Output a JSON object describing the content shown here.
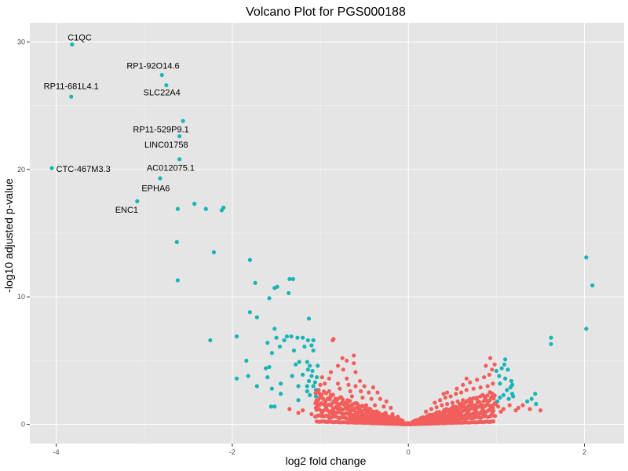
{
  "chart_data": {
    "type": "scatter",
    "title": "Volcano Plot for PGS000188",
    "xlabel": "log2 fold change",
    "ylabel": "-log10 adjusted p-value",
    "xlim": [
      -4.3,
      2.45
    ],
    "ylim": [
      -1.5,
      31.5
    ],
    "x_ticks": [
      -4,
      -2,
      0,
      2
    ],
    "y_ticks": [
      0,
      10,
      20,
      30
    ],
    "x_tick_labels": [
      "-4",
      "-2",
      "0",
      "2"
    ],
    "y_tick_labels": [
      "0",
      "10",
      "20",
      "30"
    ],
    "grid": true,
    "legend": "none",
    "colors": {
      "panel": "#e5e5e5",
      "grid_major": "#ffffff",
      "significant": "#17b4b8",
      "not_significant": "#f15e5b"
    },
    "series": [
      {
        "color_key": "significant",
        "points": [
          [
            -3.82,
            29.8
          ],
          [
            -2.8,
            27.4
          ],
          [
            -2.75,
            26.6
          ],
          [
            -3.83,
            25.7
          ],
          [
            -2.56,
            23.8
          ],
          [
            -2.6,
            22.6
          ],
          [
            -2.6,
            20.8
          ],
          [
            -4.05,
            20.1
          ],
          [
            -2.82,
            19.3
          ],
          [
            -3.08,
            17.5
          ],
          [
            -2.43,
            17.3
          ],
          [
            -2.62,
            16.9
          ],
          [
            -2.3,
            16.9
          ],
          [
            -2.12,
            16.8
          ],
          [
            -2.1,
            17.0
          ],
          [
            -2.63,
            14.3
          ],
          [
            -2.21,
            13.5
          ],
          [
            -1.8,
            12.9
          ],
          [
            -2.62,
            11.3
          ],
          [
            -1.74,
            11.1
          ],
          [
            -1.52,
            10.7
          ],
          [
            -1.49,
            10.8
          ],
          [
            -1.36,
            10.3
          ],
          [
            -1.35,
            11.4
          ],
          [
            -1.31,
            11.4
          ],
          [
            -1.58,
            9.9
          ],
          [
            -1.8,
            8.8
          ],
          [
            -1.72,
            8.4
          ],
          [
            -1.13,
            8.3
          ],
          [
            -1.52,
            7.5
          ],
          [
            -1.95,
            6.9
          ],
          [
            -2.25,
            6.6
          ],
          [
            -1.5,
            6.8
          ],
          [
            -1.41,
            6.6
          ],
          [
            -1.38,
            6.9
          ],
          [
            -1.33,
            6.9
          ],
          [
            -1.26,
            6.8
          ],
          [
            -1.2,
            6.8
          ],
          [
            -1.14,
            6.6
          ],
          [
            -1.08,
            6.6
          ],
          [
            -1.6,
            6.4
          ],
          [
            -1.46,
            6.1
          ],
          [
            -1.18,
            6.1
          ],
          [
            -1.1,
            6.2
          ],
          [
            -1.08,
            5.8
          ],
          [
            -1.3,
            5.8
          ],
          [
            -1.55,
            5.6
          ],
          [
            -1.84,
            5.0
          ],
          [
            -1.24,
            4.9
          ],
          [
            -1.15,
            4.9
          ],
          [
            -1.62,
            4.4
          ],
          [
            -1.58,
            4.5
          ],
          [
            -1.28,
            4.7
          ],
          [
            -1.12,
            4.6
          ],
          [
            -1.03,
            4.6
          ],
          [
            -1.14,
            4.3
          ],
          [
            -1.09,
            4.2
          ],
          [
            -1.82,
            3.8
          ],
          [
            -1.95,
            3.6
          ],
          [
            -1.6,
            3.7
          ],
          [
            -1.32,
            3.8
          ],
          [
            -1.2,
            3.9
          ],
          [
            -1.1,
            3.8
          ],
          [
            -1.04,
            3.7
          ],
          [
            -1.13,
            3.4
          ],
          [
            -1.06,
            3.3
          ],
          [
            -1.45,
            3.2
          ],
          [
            -1.72,
            3.0
          ],
          [
            -1.25,
            3.0
          ],
          [
            -1.15,
            3.0
          ],
          [
            -1.08,
            3.0
          ],
          [
            -1.15,
            2.6
          ],
          [
            -1.05,
            2.7
          ],
          [
            -1.55,
            2.8
          ],
          [
            -1.45,
            2.4
          ],
          [
            -1.12,
            2.3
          ],
          [
            -1.05,
            2.2
          ],
          [
            -1.56,
            1.4
          ],
          [
            -1.52,
            1.4
          ],
          [
            -1.25,
            1.9
          ],
          [
            1.1,
            5.1
          ],
          [
            1.09,
            4.7
          ],
          [
            1.06,
            4.4
          ],
          [
            1.0,
            4.2
          ],
          [
            1.13,
            4.3
          ],
          [
            1.03,
            3.8
          ],
          [
            1.1,
            3.6
          ],
          [
            1.17,
            3.4
          ],
          [
            1.18,
            3.1
          ],
          [
            1.04,
            3.2
          ],
          [
            1.16,
            2.9
          ],
          [
            1.12,
            2.7
          ],
          [
            1.18,
            2.4
          ],
          [
            1.19,
            2.2
          ],
          [
            1.08,
            2.3
          ],
          [
            1.04,
            2.1
          ],
          [
            1.14,
            2.0
          ],
          [
            1.44,
            2.4
          ],
          [
            1.4,
            2.0
          ],
          [
            1.35,
            1.8
          ],
          [
            1.45,
            1.6
          ],
          [
            1.01,
            1.8
          ],
          [
            1.62,
            6.8
          ],
          [
            1.62,
            6.3
          ],
          [
            2.02,
            13.1
          ],
          [
            2.09,
            10.9
          ],
          [
            2.02,
            7.5
          ]
        ]
      },
      {
        "color_key": "not_significant",
        "points": [
          [
            -0.85,
            6.7
          ],
          [
            -0.86,
            6.6
          ],
          [
            -0.75,
            5.2
          ],
          [
            -0.62,
            5.4
          ],
          [
            -0.7,
            5.0
          ],
          [
            -0.8,
            4.6
          ],
          [
            -0.62,
            4.8
          ],
          [
            -0.88,
            4.1
          ],
          [
            -0.74,
            4.3
          ],
          [
            -0.6,
            4.1
          ],
          [
            -0.98,
            3.7
          ],
          [
            -0.9,
            3.6
          ],
          [
            -0.7,
            3.6
          ],
          [
            -0.55,
            3.4
          ],
          [
            -1.0,
            3.1
          ],
          [
            -0.95,
            3.2
          ],
          [
            -0.8,
            3.2
          ],
          [
            -0.68,
            3.1
          ],
          [
            -0.6,
            3.0
          ],
          [
            -0.5,
            3.0
          ],
          [
            -0.4,
            2.9
          ],
          [
            -1.02,
            2.7
          ],
          [
            -0.9,
            2.6
          ],
          [
            -0.78,
            2.8
          ],
          [
            -0.66,
            2.6
          ],
          [
            -0.54,
            2.6
          ],
          [
            -0.45,
            2.5
          ],
          [
            -0.35,
            2.5
          ],
          [
            -1.0,
            2.2
          ],
          [
            -0.88,
            2.2
          ],
          [
            -0.76,
            2.1
          ],
          [
            -0.64,
            2.2
          ],
          [
            -0.52,
            2.1
          ],
          [
            -0.42,
            2.0
          ],
          [
            -0.32,
            2.0
          ],
          [
            -0.25,
            1.8
          ],
          [
            -1.03,
            1.8
          ],
          [
            -0.95,
            1.6
          ],
          [
            -0.82,
            1.7
          ],
          [
            -0.7,
            1.7
          ],
          [
            -0.58,
            1.6
          ],
          [
            -0.48,
            1.5
          ],
          [
            -0.38,
            1.5
          ],
          [
            -0.28,
            1.4
          ],
          [
            -0.2,
            1.3
          ],
          [
            -1.35,
            1.2
          ],
          [
            -1.2,
            1.1
          ],
          [
            -1.05,
            1.3
          ],
          [
            -0.93,
            1.2
          ],
          [
            -0.8,
            1.2
          ],
          [
            -0.68,
            1.2
          ],
          [
            -0.56,
            1.1
          ],
          [
            -0.46,
            1.0
          ],
          [
            -0.36,
            1.0
          ],
          [
            -0.26,
            0.9
          ],
          [
            -0.18,
            0.8
          ],
          [
            -0.12,
            0.6
          ],
          [
            -1.25,
            0.9
          ],
          [
            -1.1,
            0.8
          ],
          [
            -0.98,
            0.9
          ],
          [
            -0.86,
            0.8
          ],
          [
            -0.74,
            0.8
          ],
          [
            -0.62,
            0.7
          ],
          [
            -0.5,
            0.7
          ],
          [
            -0.4,
            0.6
          ],
          [
            -0.3,
            0.6
          ],
          [
            -0.22,
            0.5
          ],
          [
            -0.15,
            0.4
          ],
          [
            -0.1,
            0.3
          ],
          [
            -0.9,
            0.5
          ],
          [
            -0.78,
            0.5
          ],
          [
            -0.66,
            0.4
          ],
          [
            -0.55,
            0.4
          ],
          [
            -0.45,
            0.35
          ],
          [
            -0.35,
            0.3
          ],
          [
            -0.27,
            0.25
          ],
          [
            -0.2,
            0.2
          ],
          [
            -0.14,
            0.15
          ],
          [
            -0.08,
            0.1
          ],
          [
            -0.05,
            0.05
          ],
          [
            -0.6,
            0.15
          ],
          [
            -0.48,
            0.15
          ],
          [
            -0.38,
            0.12
          ],
          [
            -0.3,
            0.1
          ],
          [
            -0.03,
            0.02
          ],
          [
            0.03,
            0.02
          ],
          [
            0.06,
            0.06
          ],
          [
            0.1,
            0.1
          ],
          [
            0.15,
            0.15
          ],
          [
            0.2,
            0.2
          ],
          [
            0.26,
            0.3
          ],
          [
            0.32,
            0.35
          ],
          [
            0.38,
            0.4
          ],
          [
            0.45,
            0.5
          ],
          [
            0.52,
            0.55
          ],
          [
            0.6,
            0.6
          ],
          [
            0.68,
            0.6
          ],
          [
            0.76,
            0.7
          ],
          [
            0.85,
            0.8
          ],
          [
            0.95,
            0.8
          ],
          [
            0.1,
            0.35
          ],
          [
            0.16,
            0.5
          ],
          [
            0.22,
            0.6
          ],
          [
            0.28,
            0.75
          ],
          [
            0.34,
            0.85
          ],
          [
            0.4,
            0.95
          ],
          [
            0.46,
            1.0
          ],
          [
            0.52,
            1.1
          ],
          [
            0.58,
            1.2
          ],
          [
            0.65,
            1.3
          ],
          [
            0.72,
            1.3
          ],
          [
            0.8,
            1.4
          ],
          [
            0.88,
            1.5
          ],
          [
            0.96,
            1.3
          ],
          [
            0.2,
            1.0
          ],
          [
            0.26,
            1.2
          ],
          [
            0.32,
            1.35
          ],
          [
            0.38,
            1.5
          ],
          [
            0.44,
            1.6
          ],
          [
            0.5,
            1.7
          ],
          [
            0.56,
            1.8
          ],
          [
            0.62,
            1.9
          ],
          [
            0.7,
            2.0
          ],
          [
            0.78,
            2.1
          ],
          [
            0.86,
            2.2
          ],
          [
            0.94,
            2.1
          ],
          [
            0.3,
            1.7
          ],
          [
            0.36,
            1.9
          ],
          [
            0.42,
            2.1
          ],
          [
            0.48,
            2.2
          ],
          [
            0.54,
            2.4
          ],
          [
            0.6,
            2.5
          ],
          [
            0.66,
            2.7
          ],
          [
            0.74,
            2.8
          ],
          [
            0.82,
            2.9
          ],
          [
            0.9,
            3.0
          ],
          [
            0.96,
            3.2
          ],
          [
            0.55,
            2.8
          ],
          [
            0.62,
            3.1
          ],
          [
            0.7,
            3.3
          ],
          [
            0.78,
            3.5
          ],
          [
            0.86,
            3.7
          ],
          [
            0.92,
            3.9
          ],
          [
            0.95,
            4.3
          ],
          [
            0.93,
            5.2
          ],
          [
            0.88,
            4.6
          ],
          [
            0.98,
            4.7
          ],
          [
            0.66,
            3.6
          ],
          [
            0.44,
            2.5
          ],
          [
            0.4,
            2.4
          ],
          [
            1.3,
            1.5
          ],
          [
            1.38,
            1.2
          ],
          [
            1.5,
            1.1
          ],
          [
            1.25,
            1.3
          ],
          [
            1.22,
            1.1
          ],
          [
            1.08,
            1.2
          ],
          [
            1.02,
            1.4
          ],
          [
            1.15,
            1.5
          ],
          [
            0.99,
            1.6
          ],
          [
            1.05,
            1.0
          ]
        ]
      }
    ],
    "annotations": [
      {
        "text": "C1QC",
        "x": -3.82,
        "y": 29.8,
        "anchor": "start",
        "dx": -0.05,
        "dy": 0.3
      },
      {
        "text": "RP1-92O14.6",
        "x": -2.8,
        "y": 27.4,
        "anchor": "middle",
        "dx": -0.1,
        "dy": 0.5
      },
      {
        "text": "SLC22A4",
        "x": -2.75,
        "y": 26.6,
        "anchor": "middle",
        "dx": -0.05,
        "dy": -0.8
      },
      {
        "text": "RP11-681L4.1",
        "x": -3.83,
        "y": 25.7,
        "anchor": "middle",
        "dx": 0.0,
        "dy": 0.6
      },
      {
        "text": "RP11-529P9.1",
        "x": -2.56,
        "y": 23.8,
        "anchor": "middle",
        "dx": -0.25,
        "dy": -0.9
      },
      {
        "text": "LINC01758",
        "x": -2.6,
        "y": 22.6,
        "anchor": "middle",
        "dx": -0.15,
        "dy": -0.9
      },
      {
        "text": "AC012075.1",
        "x": -2.6,
        "y": 20.8,
        "anchor": "middle",
        "dx": -0.1,
        "dy": -0.9
      },
      {
        "text": "CTC-467M3.3",
        "x": -4.05,
        "y": 20.1,
        "anchor": "start",
        "dx": 0.05,
        "dy": -0.3
      },
      {
        "text": "EPHA6",
        "x": -2.82,
        "y": 19.3,
        "anchor": "middle",
        "dx": -0.05,
        "dy": -1.0
      },
      {
        "text": "ENC1",
        "x": -3.08,
        "y": 17.5,
        "anchor": "middle",
        "dx": -0.12,
        "dy": -0.9
      }
    ]
  }
}
